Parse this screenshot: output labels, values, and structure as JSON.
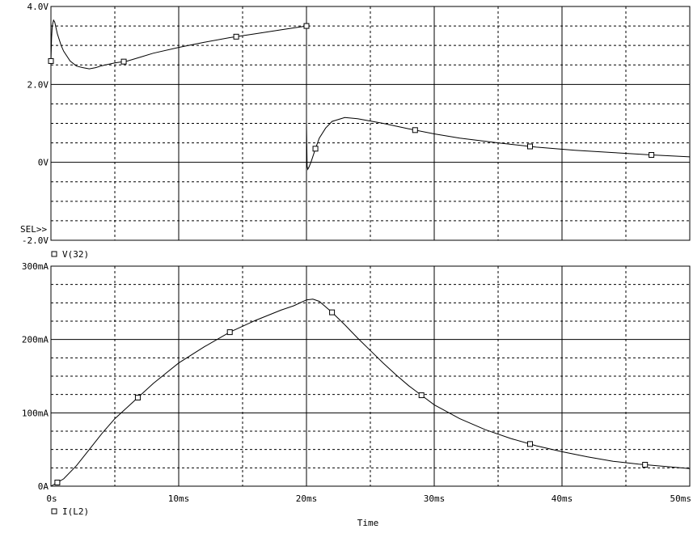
{
  "chart_data": [
    {
      "type": "line",
      "title": "",
      "xlabel": "",
      "ylabel": "",
      "xlim": [
        0,
        50
      ],
      "ylim": [
        -2.0,
        4.0
      ],
      "y_ticks": [
        {
          "value": 4.0,
          "label": "4.0V"
        },
        {
          "value": 2.0,
          "label": "2.0V"
        },
        {
          "value": 0,
          "label": "0V"
        },
        {
          "value": -2.0,
          "label": "-2.0V"
        }
      ],
      "selector_label": "SEL>>",
      "grid": true,
      "legend_position": "bottom-left",
      "series": [
        {
          "name": "V(32)",
          "x": [
            0.0,
            0.05,
            0.1,
            0.2,
            0.3,
            0.5,
            0.8,
            1.0,
            1.5,
            2.0,
            2.5,
            3.0,
            3.5,
            4.0,
            5.0,
            6.0,
            7.0,
            8.0,
            10.0,
            12.0,
            14.0,
            16.0,
            18.0,
            20.0,
            20.0,
            20.05,
            20.1,
            20.2,
            20.4,
            20.7,
            21.0,
            21.5,
            22.0,
            23.0,
            24.0,
            26.0,
            28.0,
            30.0,
            32.0,
            35.0,
            38.0,
            41.0,
            44.0,
            47.0,
            50.0
          ],
          "values": [
            2.6,
            3.2,
            3.5,
            3.65,
            3.6,
            3.3,
            3.0,
            2.85,
            2.6,
            2.47,
            2.43,
            2.4,
            2.43,
            2.48,
            2.55,
            2.6,
            2.7,
            2.8,
            2.95,
            3.08,
            3.2,
            3.3,
            3.4,
            3.5,
            1.0,
            -0.1,
            -0.18,
            -0.12,
            0.05,
            0.35,
            0.62,
            0.88,
            1.05,
            1.15,
            1.12,
            1.0,
            0.86,
            0.73,
            0.62,
            0.5,
            0.39,
            0.31,
            0.25,
            0.19,
            0.14
          ]
        }
      ]
    },
    {
      "type": "line",
      "title": "",
      "xlabel": "Time",
      "ylabel": "",
      "xlim": [
        0,
        50
      ],
      "ylim": [
        0,
        300
      ],
      "y_ticks": [
        {
          "value": 300,
          "label": "300mA"
        },
        {
          "value": 200,
          "label": "200mA"
        },
        {
          "value": 100,
          "label": "100mA"
        },
        {
          "value": 0,
          "label": "0A"
        }
      ],
      "x_ticks": [
        {
          "value": 0,
          "label": "0s"
        },
        {
          "value": 10,
          "label": "10ms"
        },
        {
          "value": 20,
          "label": "20ms"
        },
        {
          "value": 30,
          "label": "30ms"
        },
        {
          "value": 40,
          "label": "40ms"
        },
        {
          "value": 50,
          "label": "50ms"
        }
      ],
      "grid": true,
      "legend_position": "bottom-left",
      "series": [
        {
          "name": "I(L2)",
          "x": [
            0,
            1,
            2,
            3,
            4,
            5,
            6,
            7,
            8,
            9,
            10,
            12,
            14,
            16,
            18,
            19,
            20,
            20.5,
            21,
            22,
            23,
            24,
            25,
            26,
            27,
            28,
            29,
            30,
            32,
            34,
            36,
            38,
            40,
            42,
            44,
            46,
            48,
            50
          ],
          "values": [
            0,
            10,
            28,
            50,
            72,
            92,
            108,
            124,
            140,
            154,
            168,
            190,
            210,
            226,
            240,
            246,
            254,
            255,
            252,
            237,
            220,
            202,
            185,
            168,
            152,
            137,
            124,
            111,
            92,
            77,
            65,
            55,
            47,
            40,
            34,
            30,
            27,
            24
          ]
        }
      ]
    }
  ]
}
